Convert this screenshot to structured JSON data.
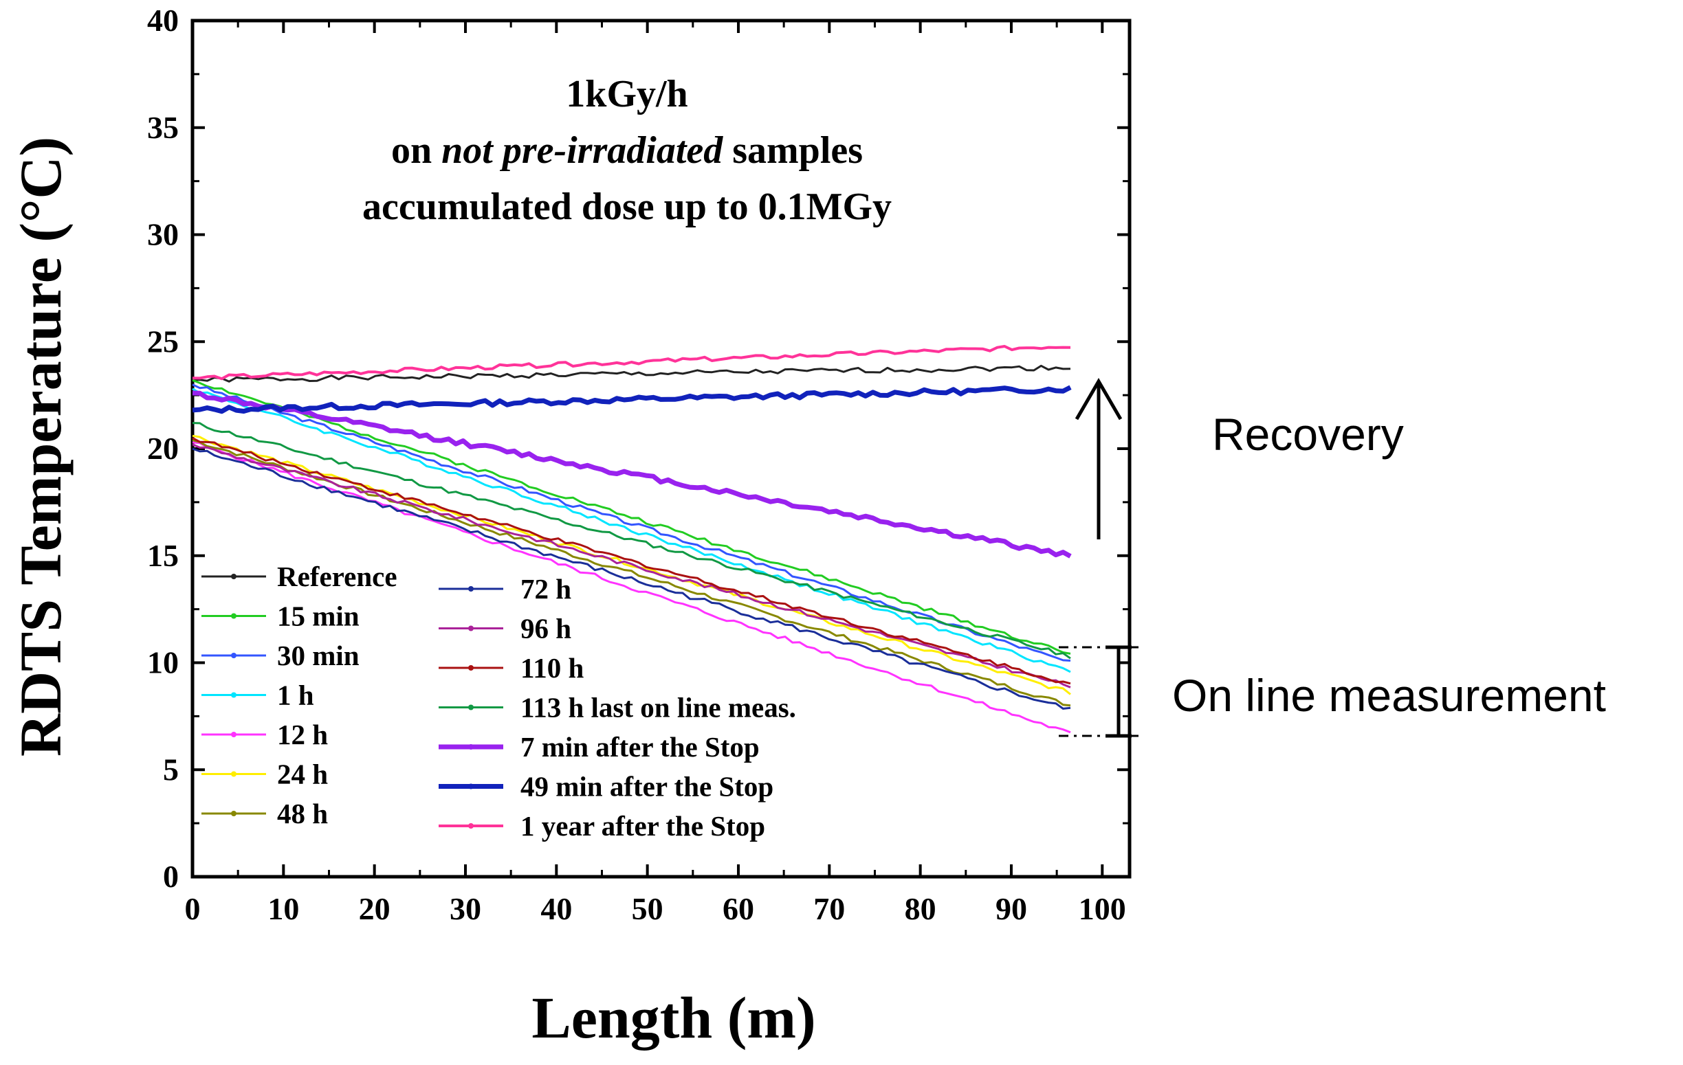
{
  "chart_data": {
    "type": "line",
    "title_lines": [
      "1kGy/h",
      "on not pre-irradiated samples",
      "accumulated dose up to 0.1MGy"
    ],
    "title_line2": {
      "before": "on ",
      "italic": "not pre-irradiated",
      "after": " samples"
    },
    "xlabel": "Length (m)",
    "ylabel": "RDTS Temperature (°C)",
    "xlim": [
      0,
      103
    ],
    "ylim": [
      0,
      40
    ],
    "xticks": [
      0,
      10,
      20,
      30,
      40,
      50,
      60,
      70,
      80,
      90,
      100
    ],
    "yticks": [
      0,
      5,
      10,
      15,
      20,
      25,
      30,
      35,
      40
    ],
    "legend": {
      "placement": "bottom-left",
      "columns": 2
    },
    "series": [
      {
        "name": "Reference",
        "color": "#222222",
        "start": 23.2,
        "end": 23.8,
        "width": 3,
        "noise": 0.12,
        "seed": 1
      },
      {
        "name": "15 min",
        "color": "#22cc22",
        "start": 23.2,
        "end": 10.4,
        "width": 3,
        "noise": 0.1,
        "seed": 2
      },
      {
        "name": "30 min",
        "color": "#3355ff",
        "start": 23.0,
        "end": 10.0,
        "width": 3,
        "noise": 0.1,
        "seed": 3
      },
      {
        "name": "1 h",
        "color": "#00e5ff",
        "start": 22.8,
        "end": 9.6,
        "width": 3,
        "noise": 0.1,
        "seed": 4
      },
      {
        "name": "12 h",
        "color": "#ff33ff",
        "start": 20.3,
        "end": 6.7,
        "width": 3,
        "noise": 0.1,
        "seed": 5
      },
      {
        "name": "24 h",
        "color": "#ffee00",
        "start": 20.6,
        "end": 8.6,
        "width": 3,
        "noise": 0.1,
        "seed": 6
      },
      {
        "name": "48 h",
        "color": "#888800",
        "start": 20.4,
        "end": 8.0,
        "width": 3,
        "noise": 0.1,
        "seed": 7
      },
      {
        "name": "72 h",
        "color": "#1a2e99",
        "start": 20.0,
        "end": 7.8,
        "width": 3,
        "noise": 0.12,
        "seed": 8
      },
      {
        "name": "96 h",
        "color": "#aa2299",
        "start": 20.2,
        "end": 8.9,
        "width": 3,
        "noise": 0.1,
        "seed": 9
      },
      {
        "name": "110 h",
        "color": "#aa1111",
        "start": 20.5,
        "end": 9.0,
        "width": 3,
        "noise": 0.1,
        "seed": 10
      },
      {
        "name": "113 h last on line meas.",
        "color": "#119944",
        "start": 21.2,
        "end": 10.3,
        "width": 3,
        "noise": 0.1,
        "seed": 11
      },
      {
        "name": "7 min after the Stop",
        "color": "#9922ee",
        "start": 22.6,
        "end": 15.0,
        "width": 7,
        "noise": 0.12,
        "seed": 12
      },
      {
        "name": "49 min after the Stop",
        "color": "#1122bb",
        "start": 21.8,
        "end": 22.8,
        "width": 7,
        "noise": 0.12,
        "seed": 13
      },
      {
        "name": "1 year after the Stop",
        "color": "#ff3399",
        "start": 23.3,
        "end": 24.8,
        "width": 4,
        "noise": 0.1,
        "seed": 14
      }
    ],
    "x_end": 96.5,
    "annotations": {
      "recovery": "Recovery",
      "online": "On line measurement"
    }
  }
}
